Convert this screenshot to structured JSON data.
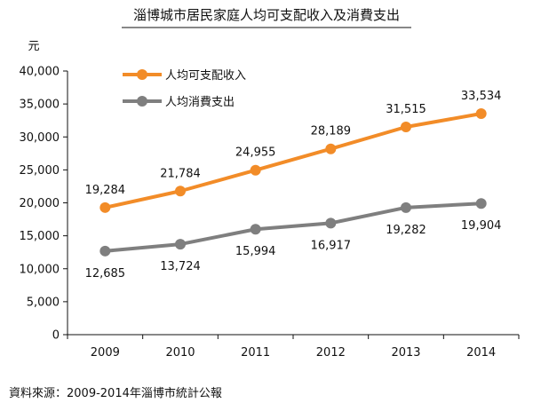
{
  "chart_data": {
    "type": "line",
    "title": "淄博城市居民家庭人均可支配收入及消費支出",
    "ylabel": "元",
    "xlabel": "",
    "categories": [
      "2009",
      "2010",
      "2011",
      "2012",
      "2013",
      "2014"
    ],
    "ylim": [
      0,
      40000
    ],
    "yticks": [
      0,
      5000,
      10000,
      15000,
      20000,
      25000,
      30000,
      35000,
      40000
    ],
    "ytick_labels": [
      "0",
      "5,000",
      "10,000",
      "15,000",
      "20,000",
      "25,000",
      "30,000",
      "35,000",
      "40,000"
    ],
    "grid": false,
    "legend_position": "top-left",
    "series": [
      {
        "name": "人均可支配收入",
        "color": "#f28c28",
        "values": [
          19284,
          21784,
          24955,
          28189,
          31515,
          33534
        ],
        "labels": [
          "19,284",
          "21,784",
          "24,955",
          "28,189",
          "31,515",
          "33,534"
        ]
      },
      {
        "name": "人均消費支出",
        "color": "#7f7f7f",
        "values": [
          12685,
          13724,
          15994,
          16917,
          19282,
          19904
        ],
        "labels": [
          "12,685",
          "13,724",
          "15,994",
          "16,917",
          "19,282",
          "19,904"
        ]
      }
    ]
  },
  "source": "資料來源：2009-2014年淄博市統計公報"
}
